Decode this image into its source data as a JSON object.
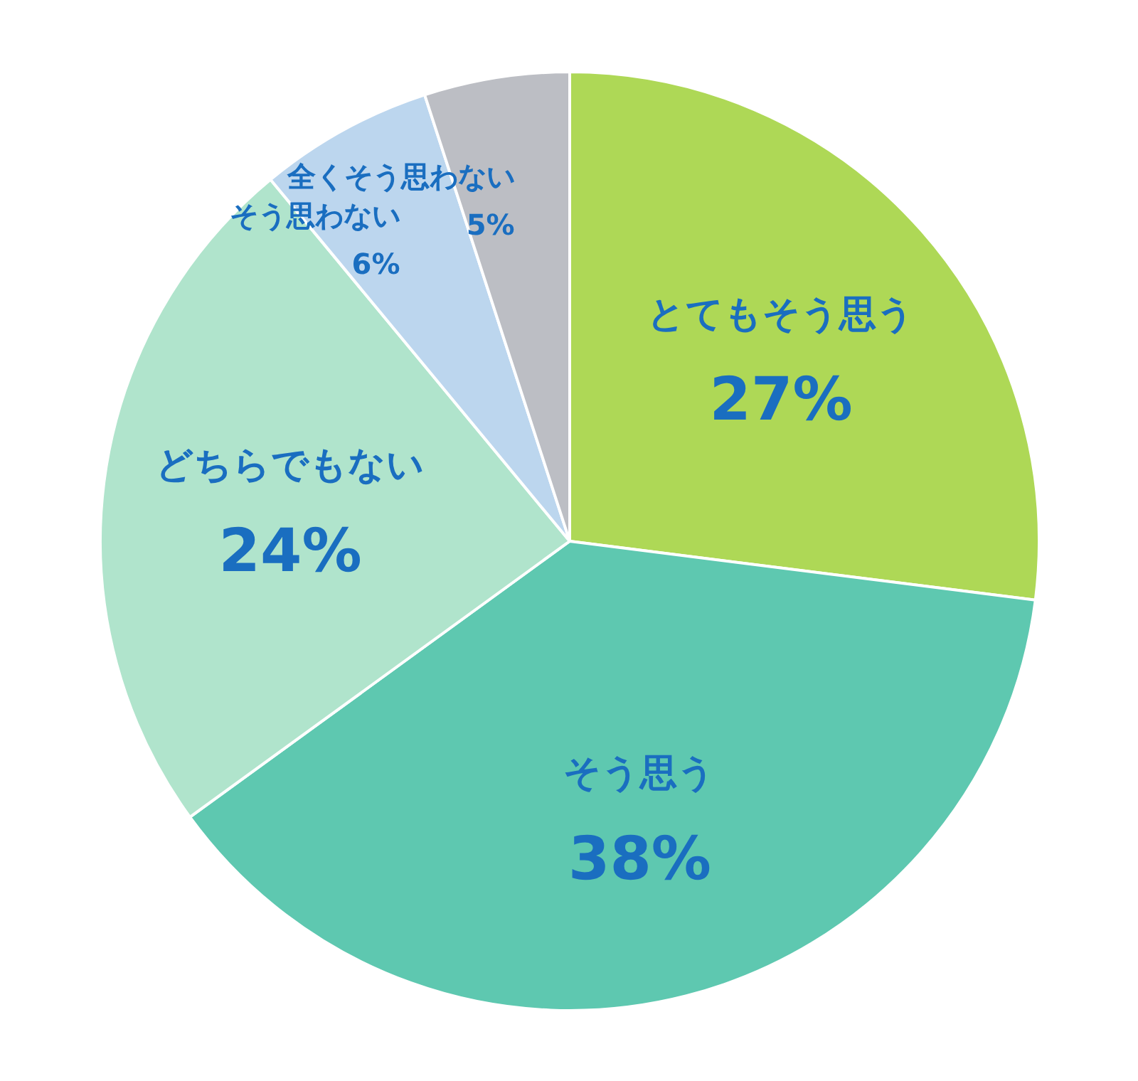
{
  "chart_data": {
    "type": "pie",
    "categories": [
      "とてもそう思う",
      "そう思う",
      "どちらでもない",
      "そう思わない",
      "全くそう思わない"
    ],
    "values": [
      27,
      38,
      24,
      6,
      5
    ],
    "colors": [
      "#aed856",
      "#5ec8b0",
      "#b0e4cc",
      "#bcd6ee",
      "#bcbec4"
    ],
    "value_labels": [
      "27%",
      "38%",
      "24%",
      "6%",
      "5%"
    ]
  }
}
